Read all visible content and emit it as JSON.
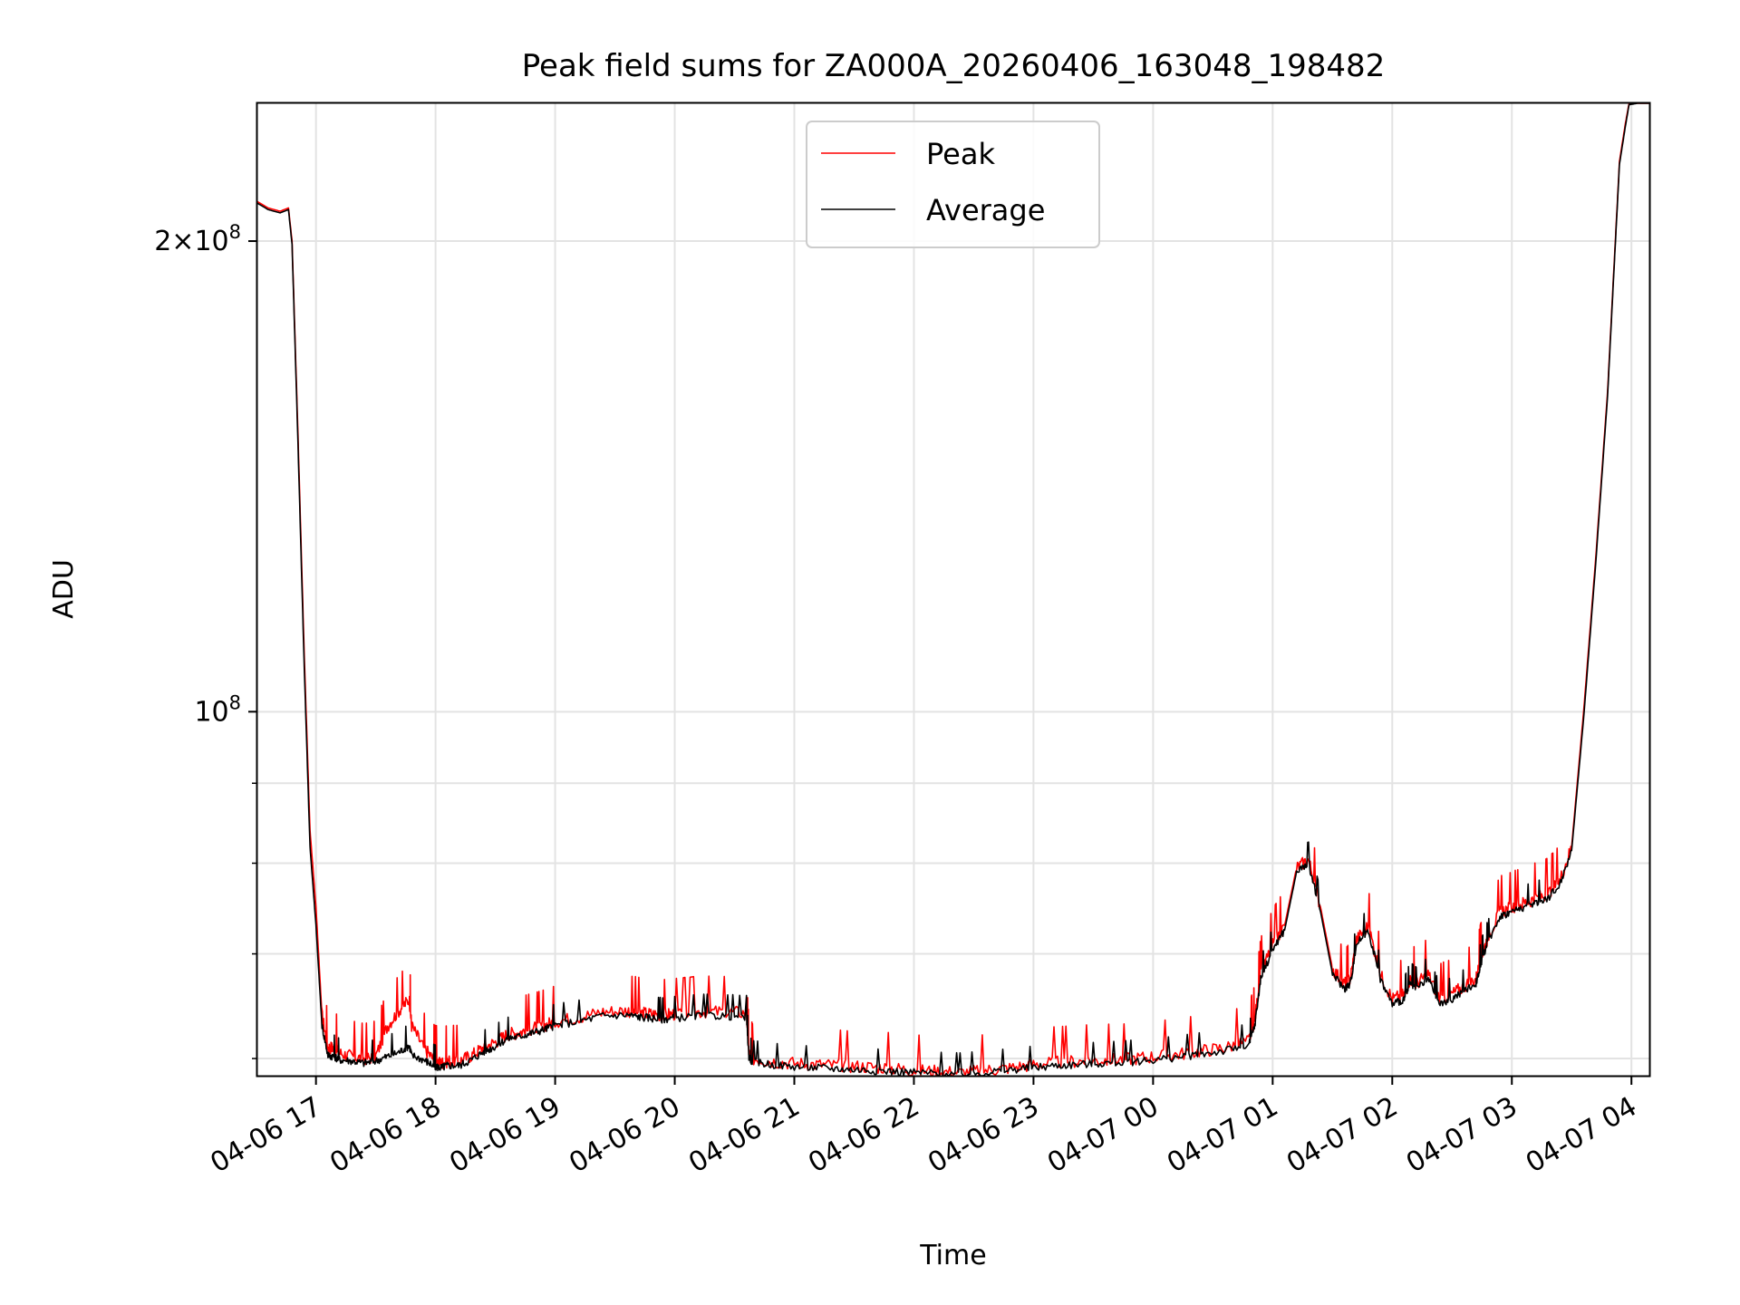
{
  "chart_data": {
    "type": "line",
    "title": "Peak field sums for ZA000A_20260406_163048_198482",
    "xlabel": "Time",
    "ylabel": "ADU",
    "y_scale": "log",
    "ylim": [
      58500000,
      245000000
    ],
    "xlim_hours": [
      16.51,
      28.15
    ],
    "grid": true,
    "legend_location": "upper center",
    "colors": {
      "Peak": "#ff0000",
      "Average": "#000000",
      "grid": "#e3e3e3"
    },
    "x_ticks": [
      {
        "hour": 17,
        "label": "04-06 17"
      },
      {
        "hour": 18,
        "label": "04-06 18"
      },
      {
        "hour": 19,
        "label": "04-06 19"
      },
      {
        "hour": 20,
        "label": "04-06 20"
      },
      {
        "hour": 21,
        "label": "04-06 21"
      },
      {
        "hour": 22,
        "label": "04-06 22"
      },
      {
        "hour": 23,
        "label": "04-06 23"
      },
      {
        "hour": 24,
        "label": "04-07 00"
      },
      {
        "hour": 25,
        "label": "04-07 01"
      },
      {
        "hour": 26,
        "label": "04-07 02"
      },
      {
        "hour": 27,
        "label": "04-07 03"
      },
      {
        "hour": 28,
        "label": "04-07 04"
      }
    ],
    "y_major_ticks": [
      {
        "value": 100000000,
        "base": "10",
        "exp": "8",
        "coef": ""
      },
      {
        "value": 200000000,
        "base": "10",
        "exp": "8",
        "coef": "2"
      }
    ],
    "y_minor_ticks": [
      60000000,
      70000000,
      80000000,
      90000000
    ],
    "series": [
      {
        "name": "Peak",
        "x_hours": [
          16.51,
          16.6,
          16.7,
          16.77,
          16.8,
          16.85,
          16.9,
          16.95,
          17.0,
          17.05,
          17.1,
          17.15,
          17.2,
          17.3,
          17.4,
          17.5,
          17.6,
          17.7,
          17.78,
          17.8,
          17.9,
          17.98,
          18.0,
          18.05,
          18.1,
          18.2,
          18.3,
          18.4,
          18.5,
          18.6,
          18.7,
          18.8,
          18.9,
          19.0,
          19.2,
          19.4,
          19.6,
          19.7,
          19.8,
          19.9,
          20.0,
          20.2,
          20.4,
          20.6,
          20.62,
          20.65,
          20.8,
          21.0,
          21.2,
          21.4,
          21.6,
          21.8,
          22.0,
          22.2,
          22.4,
          22.6,
          22.8,
          23.0,
          23.2,
          23.4,
          23.6,
          23.8,
          24.0,
          24.2,
          24.4,
          24.6,
          24.8,
          24.85,
          24.9,
          25.0,
          25.1,
          25.2,
          25.3,
          25.4,
          25.5,
          25.6,
          25.65,
          25.7,
          25.8,
          25.9,
          26.0,
          26.1,
          26.15,
          26.2,
          26.3,
          26.4,
          26.5,
          26.6,
          26.7,
          26.75,
          26.8,
          26.9,
          27.0,
          27.1,
          27.2,
          27.3,
          27.4,
          27.5,
          27.6,
          27.7,
          27.8,
          27.85,
          27.9,
          27.95,
          27.98,
          28.05,
          28.15
        ],
        "y": [
          212000000,
          210000000,
          209000000,
          210000000,
          200000000,
          150000000,
          110000000,
          84000000,
          75000000,
          64000000,
          61000000,
          61000000,
          60500000,
          60200000,
          60000000,
          60200000,
          63000000,
          64500000,
          65500000,
          63000000,
          61000000,
          60000000,
          59800000,
          59600000,
          59800000,
          59800000,
          60300000,
          61000000,
          61500000,
          62200000,
          62400000,
          62700000,
          63000000,
          63400000,
          63800000,
          64300000,
          64400000,
          64200000,
          64100000,
          64000000,
          64100000,
          64300000,
          64300000,
          64200000,
          60500000,
          60000000,
          59800000,
          59600000,
          59500000,
          59400000,
          59300000,
          59200000,
          59000000,
          58900000,
          58800000,
          59000000,
          59200000,
          59500000,
          59700000,
          59800000,
          59900000,
          60000000,
          60200000,
          60400000,
          60700000,
          61000000,
          61600000,
          63500000,
          68000000,
          71000000,
          73000000,
          79500000,
          80500000,
          75000000,
          68500000,
          67000000,
          67500000,
          71500000,
          73000000,
          68000000,
          65500000,
          66000000,
          67500000,
          67000000,
          68000000,
          65500000,
          66000000,
          66800000,
          67500000,
          70000000,
          71800000,
          74500000,
          75000000,
          75500000,
          76000000,
          76500000,
          78000000,
          82000000,
          100000000,
          125000000,
          160000000,
          190000000,
          225000000,
          238000000,
          245000000,
          245000000,
          245000000
        ]
      },
      {
        "name": "Average",
        "x_hours": [
          16.51,
          16.6,
          16.7,
          16.77,
          16.8,
          16.85,
          16.9,
          16.95,
          17.0,
          17.05,
          17.1,
          17.15,
          17.2,
          17.3,
          17.4,
          17.5,
          17.6,
          17.7,
          17.78,
          17.8,
          17.9,
          17.98,
          18.0,
          18.05,
          18.1,
          18.2,
          18.3,
          18.4,
          18.5,
          18.6,
          18.7,
          18.8,
          18.9,
          19.0,
          19.2,
          19.4,
          19.6,
          19.7,
          19.8,
          19.9,
          20.0,
          20.2,
          20.4,
          20.6,
          20.62,
          20.65,
          20.8,
          21.0,
          21.2,
          21.4,
          21.6,
          21.8,
          22.0,
          22.2,
          22.4,
          22.6,
          22.8,
          23.0,
          23.2,
          23.4,
          23.6,
          23.8,
          24.0,
          24.2,
          24.4,
          24.6,
          24.8,
          24.85,
          24.9,
          25.0,
          25.1,
          25.2,
          25.3,
          25.4,
          25.5,
          25.6,
          25.65,
          25.7,
          25.8,
          25.9,
          26.0,
          26.1,
          26.15,
          26.2,
          26.3,
          26.4,
          26.5,
          26.6,
          26.7,
          26.75,
          26.8,
          26.9,
          27.0,
          27.1,
          27.2,
          27.3,
          27.4,
          27.5,
          27.6,
          27.7,
          27.8,
          27.85,
          27.9,
          27.95,
          27.98,
          28.05,
          28.15
        ],
        "y": [
          211500000,
          209500000,
          208500000,
          209500000,
          199000000,
          148000000,
          108000000,
          82000000,
          73000000,
          63000000,
          60300000,
          60200000,
          59900000,
          59800000,
          59600000,
          59800000,
          60200000,
          60600000,
          61200000,
          60300000,
          59900000,
          59400000,
          59300000,
          59200000,
          59400000,
          59400000,
          59900000,
          60600000,
          61100000,
          61800000,
          62000000,
          62300000,
          62600000,
          63000000,
          63400000,
          63900000,
          64000000,
          63800000,
          63700000,
          63600000,
          63700000,
          63900000,
          63900000,
          63800000,
          60200000,
          59700000,
          59500000,
          59300000,
          59200000,
          59100000,
          59000000,
          58900000,
          58800000,
          58700000,
          58600000,
          58800000,
          59000000,
          59200000,
          59400000,
          59500000,
          59600000,
          59700000,
          59900000,
          60100000,
          60400000,
          60700000,
          61200000,
          63000000,
          67500000,
          70500000,
          72500000,
          79000000,
          80000000,
          74500000,
          68000000,
          66500000,
          67000000,
          71000000,
          72500000,
          67500000,
          65000000,
          65500000,
          67000000,
          66500000,
          67500000,
          65000000,
          65500000,
          66300000,
          67000000,
          69500000,
          71300000,
          74000000,
          74500000,
          75000000,
          75500000,
          76000000,
          77500000,
          81500000,
          99000000,
          124000000,
          159000000,
          189000000,
          224000000,
          237000000,
          244500000,
          245000000,
          245000000
        ]
      }
    ]
  }
}
